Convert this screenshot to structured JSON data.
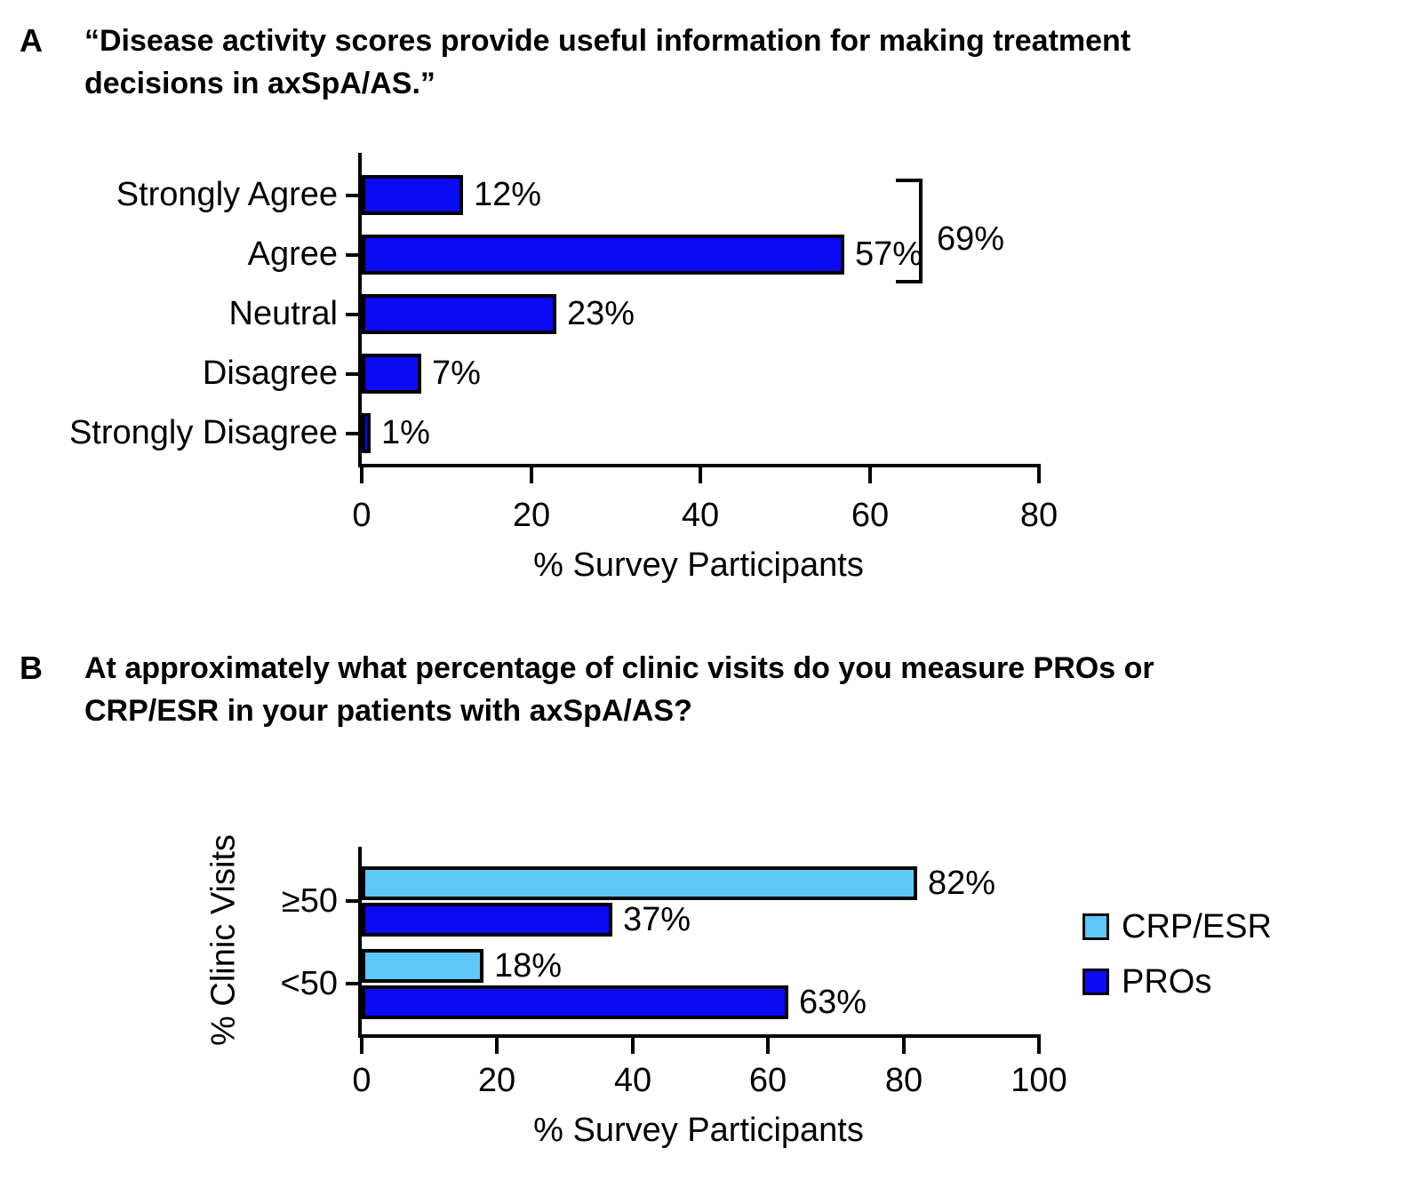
{
  "panels": {
    "a": {
      "letter": "A",
      "title_lines": [
        "“Disease activity scores provide useful information for making treatment",
        "decisions in axSpA/AS.”"
      ]
    },
    "b": {
      "letter": "B",
      "title_lines": [
        "At approximately what percentage of clinic visits do you measure PROs or",
        "CRP/ESR in your patients with axSpA/AS?"
      ]
    }
  },
  "chart_data": [
    {
      "id": "panel-a",
      "type": "bar",
      "orientation": "horizontal",
      "title": "“Disease activity scores provide useful information for making treatment decisions in axSpA/AS.”",
      "categories": [
        "Strongly Agree",
        "Agree",
        "Neutral",
        "Disagree",
        "Strongly Disagree"
      ],
      "values": [
        12,
        57,
        23,
        7,
        1
      ],
      "value_labels": [
        "12%",
        "57%",
        "23%",
        "7%",
        "1%"
      ],
      "bar_color": "#0a0af5",
      "bar_border_color": "#000000",
      "xlabel": "% Survey Participants",
      "xlim": [
        0,
        80
      ],
      "xticks": [
        0,
        20,
        40,
        60,
        80
      ],
      "grid": false,
      "legend": null,
      "annotation": {
        "label": "69%",
        "spans_categories": [
          "Strongly Agree",
          "Agree"
        ]
      }
    },
    {
      "id": "panel-b",
      "type": "bar",
      "orientation": "horizontal",
      "grouped": true,
      "title": "At approximately what percentage of clinic visits do you measure PROs or CRP/ESR in your patients with axSpA/AS?",
      "categories": [
        "≥50",
        "<50"
      ],
      "series": [
        {
          "name": "CRP/ESR",
          "color": "#5fc7f7",
          "values": [
            82,
            18
          ],
          "value_labels": [
            "82%",
            "18%"
          ]
        },
        {
          "name": "PROs",
          "color": "#0a0af5",
          "values": [
            37,
            63
          ],
          "value_labels": [
            "37%",
            "63%"
          ]
        }
      ],
      "bar_border_color": "#000000",
      "xlabel": "% Survey Participants",
      "ylabel": "% Clinic Visits",
      "xlim": [
        0,
        100
      ],
      "xticks": [
        0,
        20,
        40,
        60,
        80,
        100
      ],
      "grid": false,
      "legend": {
        "position": "right",
        "entries": [
          "CRP/ESR",
          "PROs"
        ]
      }
    }
  ]
}
